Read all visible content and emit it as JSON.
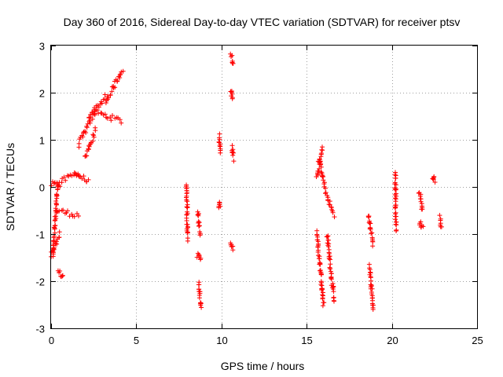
{
  "chart_data": {
    "type": "scatter",
    "title": "Day 360 of 2016, Sidereal Day-to-day VTEC variation (SDTVAR) for receiver ptsv",
    "xlabel": "GPS time / hours",
    "ylabel": "SDTVAR / TECUs",
    "xlim": [
      0,
      25
    ],
    "ylim": [
      -3,
      3
    ],
    "xticks": [
      0,
      5,
      10,
      15,
      20,
      25
    ],
    "yticks": [
      -3,
      -2,
      -1,
      0,
      1,
      2,
      3
    ],
    "xtick_labels": [
      "0",
      "5",
      "10",
      "15",
      "20",
      "25"
    ],
    "ytick_labels": [
      "-3",
      "-2",
      "-1",
      "0",
      "1",
      "2",
      "3"
    ],
    "grid": true,
    "marker": "+",
    "color": "#ff0000",
    "series": [
      {
        "name": "ptsv",
        "segments": [
          {
            "x": [
              0.0,
              0.5
            ],
            "y": [
              0.05,
              0.05
            ]
          },
          {
            "x": [
              0.0,
              0.5
            ],
            "y": [
              -1.45,
              -1.0
            ]
          },
          {
            "x": [
              0.1,
              0.4
            ],
            "y": [
              -1.45,
              0.05
            ]
          },
          {
            "x": [
              0.4,
              0.7
            ],
            "y": [
              -1.8,
              -1.9
            ]
          },
          {
            "x": [
              0.3,
              1.6
            ],
            "y": [
              -0.5,
              -0.6
            ]
          },
          {
            "x": [
              0.5,
              1.6
            ],
            "y": [
              0.1,
              0.3
            ]
          },
          {
            "x": [
              1.4,
              2.2
            ],
            "y": [
              0.3,
              0.1
            ]
          },
          {
            "x": [
              1.6,
              2.6
            ],
            "y": [
              0.9,
              1.6
            ]
          },
          {
            "x": [
              2.2,
              3.2
            ],
            "y": [
              1.5,
              1.9
            ]
          },
          {
            "x": [
              2.5,
              4.1
            ],
            "y": [
              1.6,
              1.4
            ]
          },
          {
            "x": [
              3.2,
              4.2
            ],
            "y": [
              1.8,
              2.5
            ]
          },
          {
            "x": [
              2.0,
              2.6
            ],
            "y": [
              0.6,
              1.2
            ]
          },
          {
            "x": [
              7.95,
              8.0
            ],
            "y": [
              0.06,
              -1.1
            ]
          },
          {
            "x": [
              8.6,
              8.75
            ],
            "y": [
              -0.5,
              -1.0
            ]
          },
          {
            "x": [
              8.6,
              8.8
            ],
            "y": [
              -1.45,
              -1.55
            ]
          },
          {
            "x": [
              8.65,
              8.8
            ],
            "y": [
              -2.0,
              -2.6
            ]
          },
          {
            "x": [
              9.85,
              9.95
            ],
            "y": [
              1.1,
              0.75
            ]
          },
          {
            "x": [
              9.85,
              9.9
            ],
            "y": [
              -0.35,
              -0.45
            ]
          },
          {
            "x": [
              10.55,
              10.65
            ],
            "y": [
              2.8,
              2.6
            ]
          },
          {
            "x": [
              10.55,
              10.65
            ],
            "y": [
              2.05,
              1.85
            ]
          },
          {
            "x": [
              10.6,
              10.7
            ],
            "y": [
              0.85,
              0.6
            ]
          },
          {
            "x": [
              10.55,
              10.65
            ],
            "y": [
              -1.2,
              -1.3
            ]
          },
          {
            "x": [
              15.6,
              15.9
            ],
            "y": [
              0.2,
              0.85
            ]
          },
          {
            "x": [
              15.7,
              16.1
            ],
            "y": [
              0.6,
              0.0
            ]
          },
          {
            "x": [
              15.6,
              16.0
            ],
            "y": [
              -0.95,
              -2.5
            ]
          },
          {
            "x": [
              16.1,
              16.6
            ],
            "y": [
              -0.1,
              -0.6
            ]
          },
          {
            "x": [
              16.2,
              16.6
            ],
            "y": [
              -1.0,
              -2.4
            ]
          },
          {
            "x": [
              18.6,
              18.9
            ],
            "y": [
              -0.6,
              -1.2
            ]
          },
          {
            "x": [
              18.7,
              18.9
            ],
            "y": [
              -1.7,
              -2.6
            ]
          },
          {
            "x": [
              20.2,
              20.25
            ],
            "y": [
              0.3,
              -0.9
            ]
          },
          {
            "x": [
              21.6,
              21.8
            ],
            "y": [
              -0.1,
              -0.5
            ]
          },
          {
            "x": [
              21.6,
              21.8
            ],
            "y": [
              -0.75,
              -0.85
            ]
          },
          {
            "x": [
              22.4,
              22.5
            ],
            "y": [
              0.2,
              0.15
            ]
          },
          {
            "x": [
              22.8,
              22.9
            ],
            "y": [
              -0.65,
              -0.85
            ]
          }
        ]
      }
    ]
  }
}
